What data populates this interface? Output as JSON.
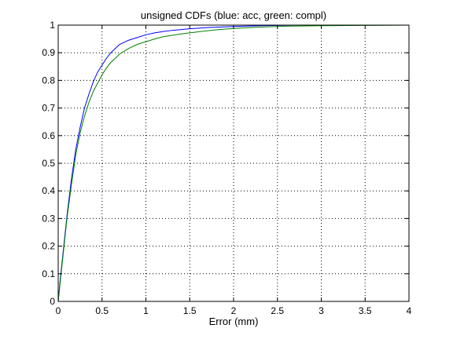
{
  "chart_data": {
    "type": "line",
    "title": "unsigned CDFs (blue: acc, green: compl)",
    "xlabel": "Error (mm)",
    "ylabel": "",
    "xlim": [
      0,
      4
    ],
    "ylim": [
      0,
      1
    ],
    "grid": true,
    "x_ticks": [
      "0",
      "0.5",
      "1",
      "1.5",
      "2",
      "2.5",
      "3",
      "3.5",
      "4"
    ],
    "y_ticks": [
      "0",
      "0.1",
      "0.2",
      "0.3",
      "0.4",
      "0.5",
      "0.6",
      "0.7",
      "0.8",
      "0.9",
      "1"
    ],
    "series": [
      {
        "color": "#0000ff",
        "x": [
          0,
          0.02,
          0.05,
          0.1,
          0.15,
          0.2,
          0.25,
          0.3,
          0.35,
          0.4,
          0.45,
          0.5,
          0.55,
          0.6,
          0.65,
          0.7,
          0.8,
          0.9,
          1.0,
          1.1,
          1.2,
          1.3,
          1.5,
          1.7,
          2.0,
          2.3,
          2.5,
          2.75
        ],
        "y": [
          0.0,
          0.07,
          0.16,
          0.31,
          0.44,
          0.55,
          0.63,
          0.7,
          0.75,
          0.795,
          0.83,
          0.855,
          0.88,
          0.9,
          0.915,
          0.93,
          0.945,
          0.955,
          0.965,
          0.972,
          0.977,
          0.981,
          0.987,
          0.991,
          0.995,
          0.998,
          0.999,
          1.0
        ]
      },
      {
        "color": "#008000",
        "x": [
          0,
          0.02,
          0.05,
          0.1,
          0.15,
          0.2,
          0.25,
          0.3,
          0.35,
          0.4,
          0.45,
          0.5,
          0.55,
          0.6,
          0.65,
          0.7,
          0.8,
          0.9,
          1.0,
          1.1,
          1.2,
          1.4,
          1.6,
          1.8,
          2.0,
          2.3,
          2.6,
          3.0,
          3.5,
          4.0
        ],
        "y": [
          0.0,
          0.06,
          0.15,
          0.3,
          0.42,
          0.53,
          0.61,
          0.67,
          0.72,
          0.76,
          0.79,
          0.82,
          0.845,
          0.865,
          0.88,
          0.895,
          0.915,
          0.93,
          0.94,
          0.95,
          0.958,
          0.968,
          0.976,
          0.983,
          0.988,
          0.993,
          0.996,
          0.998,
          0.999,
          1.0
        ]
      }
    ]
  }
}
